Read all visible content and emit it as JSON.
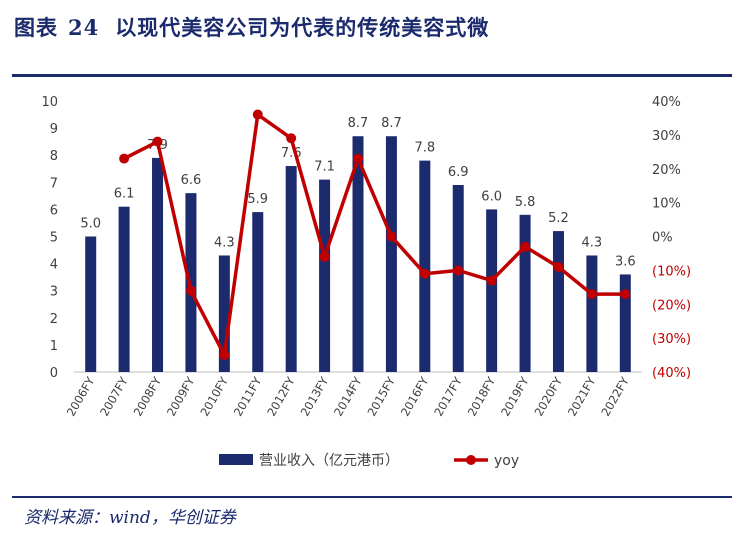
{
  "header": {
    "figure_label": "图表",
    "figure_number": "24",
    "title": "以现代美容公司为代表的传统美容式微"
  },
  "footer": {
    "source": "资料来源：wind，华创证券"
  },
  "colors": {
    "bar": "#1c2a6e",
    "line": "#c00000",
    "rule": "#1a2a6c",
    "axis_text": "#404040",
    "negative_text": "#c00000"
  },
  "chart_data": {
    "type": "bar",
    "title": "",
    "categories": [
      "2006FY",
      "2007FY",
      "2008FY",
      "2009FY",
      "2010FY",
      "2011FY",
      "2012FY",
      "2013FY",
      "2014FY",
      "2015FY",
      "2016FY",
      "2017FY",
      "2018FY",
      "2019FY",
      "2020FY",
      "2021FY",
      "2022FY"
    ],
    "series": [
      {
        "name": "营业收入（亿元港币）",
        "type": "bar",
        "axis": "left",
        "values": [
          5.0,
          6.1,
          7.9,
          6.6,
          4.3,
          5.9,
          7.6,
          7.1,
          8.7,
          8.7,
          7.8,
          6.9,
          6.0,
          5.8,
          5.2,
          4.3,
          3.6
        ],
        "labels": [
          "5.0",
          "6.1",
          "7.9",
          "6.6",
          "4.3",
          "5.9",
          "7.6",
          "7.1",
          "8.7",
          "8.7",
          "7.8",
          "6.9",
          "6.0",
          "5.8",
          "5.2",
          "4.3",
          "3.6"
        ]
      },
      {
        "name": "yoy",
        "type": "line",
        "axis": "right",
        "values": [
          null,
          23,
          28,
          -16,
          -35,
          36,
          29,
          -6,
          23,
          0,
          -11,
          -10,
          -13,
          -3,
          -9,
          -17,
          -17
        ]
      }
    ],
    "y_left": {
      "min": 0,
      "max": 10,
      "ticks": [
        "0",
        "1",
        "2",
        "3",
        "4",
        "5",
        "6",
        "7",
        "8",
        "9",
        "10"
      ]
    },
    "y_right": {
      "min": -40,
      "max": 40,
      "ticks": [
        "(40%)",
        "(30%)",
        "(20%)",
        "(10%)",
        "0%",
        "10%",
        "20%",
        "30%",
        "40%"
      ],
      "tick_values": [
        -40,
        -30,
        -20,
        -10,
        0,
        10,
        20,
        30,
        40
      ]
    },
    "grid": false,
    "legend_position": "bottom"
  }
}
